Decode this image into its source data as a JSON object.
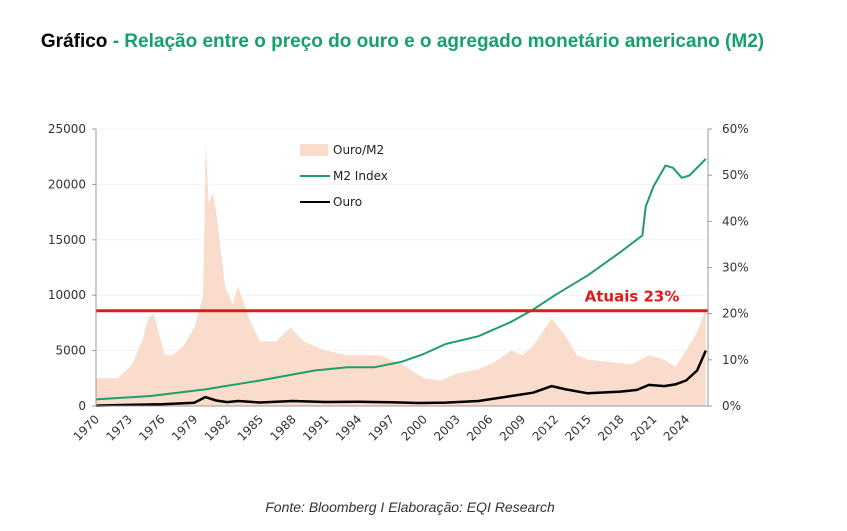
{
  "title": {
    "lead": "Gráfico",
    "rest": " - Relação entre o preço do ouro e o agregado monetário americano (M2)"
  },
  "source": "Fonte: Bloomberg I Elaboração: EQI Research",
  "colors": {
    "title_green": "#17a06b",
    "m2": "#1e9e6a",
    "ouro": "#000000",
    "ouro_m2": "#f9dccb",
    "reference": "#e01b1b"
  },
  "chart_data": {
    "type": "line",
    "title": "",
    "xlim": [
      1970,
      2026
    ],
    "x_ticks": [
      "1970",
      "1973",
      "1976",
      "1979",
      "1982",
      "1985",
      "1988",
      "1991",
      "1994",
      "1997",
      "2000",
      "2003",
      "2006",
      "2009",
      "2012",
      "2015",
      "2018",
      "2021",
      "2024"
    ],
    "y_left": {
      "lim": [
        0,
        25000
      ],
      "ticks": [
        "0",
        "5000",
        "10000",
        "15000",
        "20000",
        "25000"
      ]
    },
    "y_right": {
      "lim": [
        0,
        60
      ],
      "ticks": [
        "0%",
        "10%",
        "20%",
        "30%",
        "40%",
        "50%",
        "60%"
      ]
    },
    "legend_position": "top-center",
    "series": [
      {
        "name": "Ouro/M2",
        "kind": "area",
        "axis": "right",
        "unit": "%",
        "x": [
          1970,
          1972,
          1973.3,
          1974.2,
          1974.8,
          1975.3,
          1976.3,
          1977,
          1978,
          1979,
          1979.8,
          1980.05,
          1980.3,
          1980.7,
          1981,
          1981.8,
          1982.5,
          1983,
          1984,
          1985,
          1986.5,
          1987.8,
          1989,
          1991,
          1993,
          1996,
          1998,
          2000,
          2001.5,
          2003,
          2005,
          2006.5,
          2008,
          2009,
          2010,
          2011.7,
          2013,
          2014,
          2015,
          2017,
          2019,
          2020.6,
          2022,
          2023,
          2024,
          2025,
          2025.8
        ],
        "y": [
          6,
          6,
          9,
          14,
          19,
          20,
          11,
          11,
          13,
          17,
          24,
          57,
          44,
          46,
          42,
          26,
          22,
          26,
          19,
          14,
          14,
          17,
          14,
          12,
          11,
          11,
          9,
          6,
          5.5,
          7,
          8,
          9.5,
          12,
          11,
          13,
          19,
          15,
          11,
          10,
          9.5,
          9,
          11,
          10,
          8.5,
          12,
          16,
          21
        ]
      },
      {
        "name": "M2 Index",
        "kind": "line",
        "axis": "left",
        "x": [
          1970,
          1975,
          1980,
          1985,
          1990,
          1993,
          1995.5,
          1998,
          2000,
          2002,
          2005,
          2008,
          2010,
          2012,
          2015,
          2018,
          2020,
          2020.3,
          2021,
          2022.1,
          2022.8,
          2023.6,
          2024.3,
          2025.8
        ],
        "y": [
          600,
          900,
          1500,
          2300,
          3200,
          3500,
          3500,
          4000,
          4700,
          5600,
          6300,
          7600,
          8700,
          10000,
          11800,
          13900,
          15400,
          18000,
          19800,
          21700,
          21500,
          20600,
          20800,
          22300
        ]
      },
      {
        "name": "Ouro",
        "kind": "line",
        "axis": "left",
        "x": [
          1970,
          1973,
          1976,
          1979,
          1980,
          1981,
          1982,
          1983,
          1985,
          1988,
          1991,
          1994,
          1997,
          1999.5,
          2002,
          2005,
          2008,
          2010,
          2011.7,
          2013,
          2015,
          2018,
          2019.5,
          2020.6,
          2022,
          2023,
          2024,
          2025,
          2025.8
        ],
        "y": [
          35,
          100,
          150,
          300,
          800,
          500,
          350,
          450,
          320,
          450,
          360,
          380,
          340,
          270,
          310,
          450,
          900,
          1200,
          1800,
          1500,
          1150,
          1300,
          1450,
          1900,
          1800,
          1950,
          2300,
          3200,
          5000
        ]
      }
    ],
    "reference_line": {
      "value": 8600,
      "axis": "left",
      "label": "Atuais 23%"
    }
  }
}
